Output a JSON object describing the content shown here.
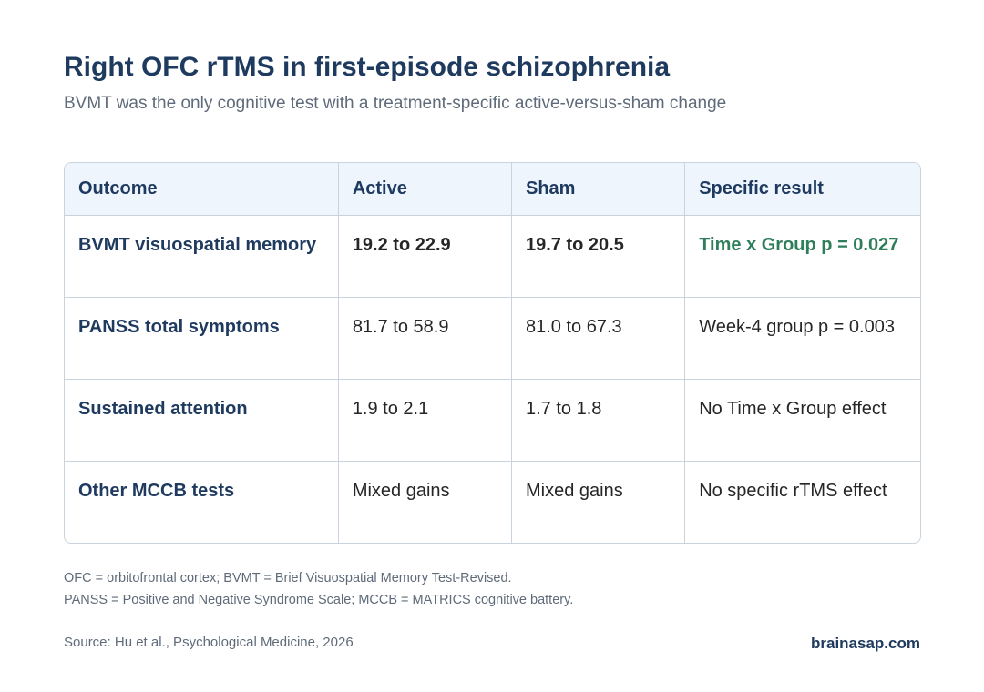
{
  "title": "Right OFC rTMS in first-episode schizophrenia",
  "subtitle": "BVMT was the only cognitive test with a treatment-specific active-versus-sham change",
  "table": {
    "headers": [
      "Outcome",
      "Active",
      "Sham",
      "Specific result"
    ],
    "rows": [
      [
        "BVMT visuospatial memory",
        "19.2 to 22.9",
        "19.7 to 20.5",
        "Time x Group p = 0.027"
      ],
      [
        "PANSS total symptoms",
        "81.7 to 58.9",
        "81.0 to 67.3",
        "Week-4 group p = 0.003"
      ],
      [
        "Sustained attention",
        "1.9 to 2.1",
        "1.7 to 1.8",
        "No Time x Group effect"
      ],
      [
        "Other MCCB tests",
        "Mixed gains",
        "Mixed gains",
        "No specific rTMS effect"
      ]
    ]
  },
  "footnotes": [
    "OFC = orbitofrontal cortex; BVMT = Brief Visuospatial Memory Test-Revised.",
    "PANSS = Positive and Negative Syndrome Scale; MCCB = MATRICS cognitive battery."
  ],
  "source": "Source: Hu et al., Psychological Medicine, 2026",
  "brand": "brainasap.com",
  "colors": {
    "title": "#1f3a5f",
    "header_bg": "#eef5fd",
    "significant": "#2e7d5b",
    "border": "#c9d3de"
  }
}
